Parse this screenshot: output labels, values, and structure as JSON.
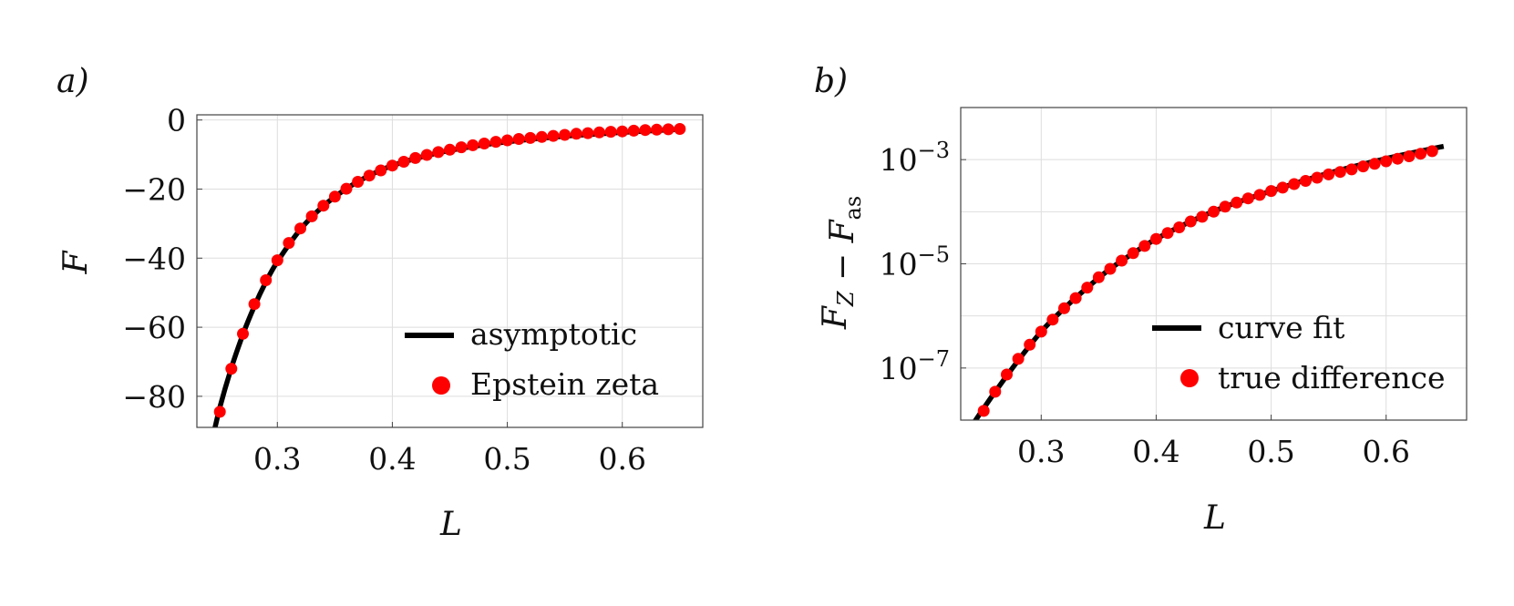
{
  "panels": [
    {
      "label": "a)",
      "xlabel": "L",
      "ylabel": "F",
      "legend": {
        "line": "asymptotic",
        "dots": "Epstein zeta"
      }
    },
    {
      "label": "b)",
      "xlabel": "L",
      "ylabel": "F_Z − F_as",
      "legend": {
        "line": "curve fit",
        "dots": "true difference"
      }
    }
  ],
  "colors": {
    "line": "#000000",
    "dots": "#ff0000"
  },
  "chart_data": [
    {
      "type": "line",
      "title": "",
      "xlabel": "L",
      "ylabel": "F",
      "xlim": [
        0.23,
        0.67
      ],
      "ylim": [
        -89,
        1.5
      ],
      "xticks": [
        0.3,
        0.4,
        0.5,
        0.6
      ],
      "xtick_labels": [
        "0.3",
        "0.4",
        "0.5",
        "0.6"
      ],
      "yticks": [
        0,
        -20,
        -40,
        -60,
        -80
      ],
      "ytick_labels": [
        "0",
        "−20",
        "−40",
        "−60",
        "−80"
      ],
      "grid": true,
      "legend_position": "bottom-right",
      "series": [
        {
          "name": "asymptotic",
          "style": "line",
          "x": [
            0.243,
            0.25,
            0.26,
            0.27,
            0.28,
            0.29,
            0.3,
            0.32,
            0.34,
            0.36,
            0.38,
            0.4,
            0.43,
            0.46,
            0.5,
            0.55,
            0.6,
            0.65
          ],
          "y": [
            -93.1,
            -83.2,
            -71.8,
            -62.1,
            -53.9,
            -46.9,
            -41.0,
            -31.7,
            -24.9,
            -19.9,
            -16.1,
            -13.2,
            -10.3,
            -8.2,
            -6.3,
            -4.7,
            -3.6,
            -2.7
          ]
        },
        {
          "name": "Epstein zeta",
          "style": "dots",
          "x": [
            0.25,
            0.26,
            0.27,
            0.28,
            0.29,
            0.3,
            0.31,
            0.32,
            0.33,
            0.34,
            0.35,
            0.36,
            0.37,
            0.38,
            0.39,
            0.4,
            0.41,
            0.42,
            0.43,
            0.44,
            0.45,
            0.46,
            0.47,
            0.48,
            0.49,
            0.5,
            0.51,
            0.52,
            0.53,
            0.54,
            0.55,
            0.56,
            0.57,
            0.58,
            0.59,
            0.6,
            0.61,
            0.62,
            0.63,
            0.64,
            0.65
          ],
          "y": [
            -84.5,
            -72.0,
            -61.9,
            -53.3,
            -46.4,
            -40.6,
            -35.6,
            -31.4,
            -27.9,
            -24.8,
            -22.2,
            -19.9,
            -17.9,
            -16.1,
            -14.6,
            -13.2,
            -12.1,
            -11.0,
            -10.1,
            -9.3,
            -8.6,
            -7.9,
            -7.3,
            -6.8,
            -6.3,
            -5.9,
            -5.5,
            -5.2,
            -4.9,
            -4.6,
            -4.3,
            -4.0,
            -3.8,
            -3.6,
            -3.4,
            -3.3,
            -3.1,
            -2.9,
            -2.8,
            -2.7,
            -2.6
          ]
        }
      ]
    },
    {
      "type": "line",
      "title": "",
      "xlabel": "L",
      "ylabel": "F_Z − F_as",
      "yscale": "log",
      "xlim": [
        0.23,
        0.67
      ],
      "ylim": [
        1e-08,
        0.01
      ],
      "xticks": [
        0.3,
        0.4,
        0.5,
        0.6
      ],
      "xtick_labels": [
        "0.3",
        "0.4",
        "0.5",
        "0.6"
      ],
      "yticks": [
        0.001,
        1e-05,
        1e-07
      ],
      "ytick_labels": [
        "10−3",
        "10−5",
        "10−7"
      ],
      "grid": true,
      "legend_position": "bottom-right",
      "series": [
        {
          "name": "curve fit",
          "style": "line",
          "x": [
            0.24,
            0.26,
            0.28,
            0.3,
            0.32,
            0.34,
            0.36,
            0.38,
            0.4,
            0.43,
            0.46,
            0.5,
            0.55,
            0.6,
            0.65
          ],
          "y": [
            8e-09,
            3.5e-08,
            1.4e-07,
            5e-07,
            1.4e-06,
            3.5e-06,
            8e-06,
            1.6e-05,
            3e-05,
            6.5e-05,
            0.000125,
            0.00025,
            0.00055,
            0.00105,
            0.0018
          ]
        },
        {
          "name": "true difference",
          "style": "dots",
          "x": [
            0.25,
            0.26,
            0.27,
            0.28,
            0.29,
            0.3,
            0.31,
            0.32,
            0.33,
            0.34,
            0.35,
            0.36,
            0.37,
            0.38,
            0.39,
            0.4,
            0.41,
            0.42,
            0.43,
            0.44,
            0.45,
            0.46,
            0.47,
            0.48,
            0.49,
            0.5,
            0.51,
            0.52,
            0.53,
            0.54,
            0.55,
            0.56,
            0.57,
            0.58,
            0.59,
            0.6,
            0.61,
            0.62,
            0.63,
            0.64
          ],
          "y": [
            1.5e-08,
            3.5e-08,
            7.5e-08,
            1.5e-07,
            2.8e-07,
            5e-07,
            8.5e-07,
            1.4e-06,
            2.2e-06,
            3.5e-06,
            5.5e-06,
            8e-06,
            1.15e-05,
            1.6e-05,
            2.2e-05,
            3e-05,
            3.9e-05,
            5e-05,
            6.5e-05,
            8e-05,
            0.0001,
            0.000125,
            0.00015,
            0.00018,
            0.00021,
            0.00025,
            0.00029,
            0.00034,
            0.00039,
            0.00045,
            0.00052,
            0.00058,
            0.00065,
            0.00074,
            0.00083,
            0.00093,
            0.00104,
            0.00116,
            0.0013,
            0.00145
          ]
        }
      ]
    }
  ]
}
